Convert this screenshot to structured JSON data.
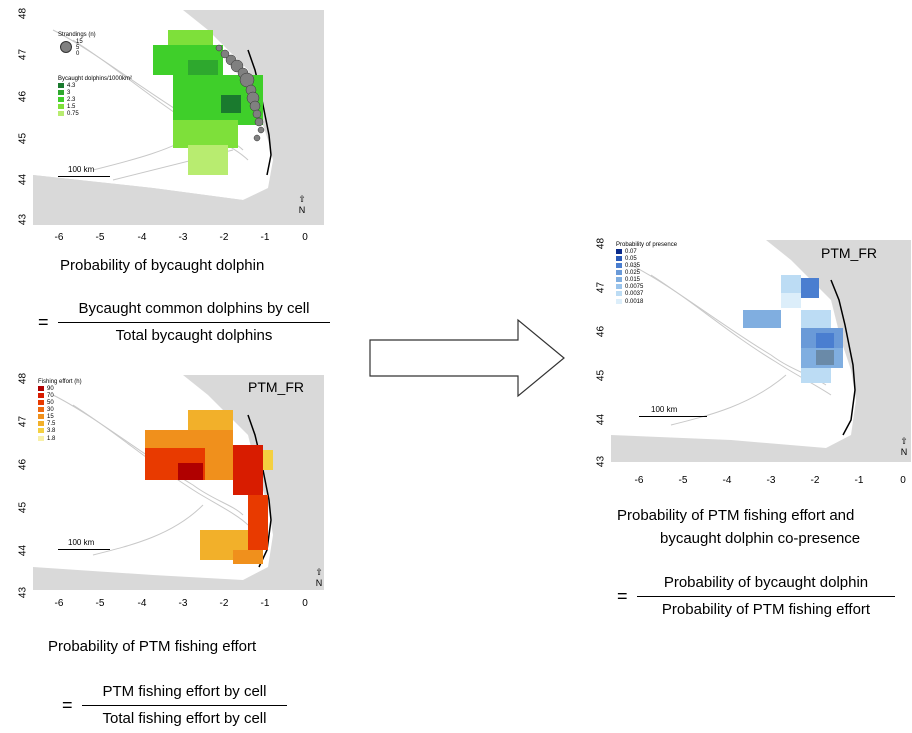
{
  "panels": {
    "top_left": {
      "y_ticks": [
        "48",
        "47",
        "46",
        "45",
        "44",
        "43"
      ],
      "x_ticks": [
        "-6",
        "-5",
        "-4",
        "-3",
        "-2",
        "-1",
        "0"
      ],
      "legend_strandings_title": "Strandings (n)",
      "legend_strandings": [
        "15",
        "5",
        "0"
      ],
      "legend_title": "Bycaught dolphins/1000km²",
      "legend": [
        {
          "label": "4.3",
          "color": "#1a7a2e"
        },
        {
          "label": "3",
          "color": "#2ea82e"
        },
        {
          "label": "2.3",
          "color": "#3fcf2a"
        },
        {
          "label": "1.5",
          "color": "#7ee03a"
        },
        {
          "label": "0.75",
          "color": "#b8ec70"
        }
      ],
      "scale_label": "100 km",
      "north": "N",
      "caption": "Probability of bycaught dolphin",
      "numerator": "Bycaught common dolphins by cell",
      "denominator": "Total bycaught dolphins",
      "equals": "="
    },
    "bottom_left": {
      "y_ticks": [
        "48",
        "47",
        "46",
        "45",
        "44",
        "43"
      ],
      "x_ticks": [
        "-6",
        "-5",
        "-4",
        "-3",
        "-2",
        "-1",
        "0"
      ],
      "legend_title": "Fishing effort (h)",
      "legend": [
        {
          "label": "90",
          "color": "#b00000"
        },
        {
          "label": "70",
          "color": "#d81c00"
        },
        {
          "label": "50",
          "color": "#e83a00"
        },
        {
          "label": "30",
          "color": "#ee6a10"
        },
        {
          "label": "15",
          "color": "#f0901c"
        },
        {
          "label": "7.5",
          "color": "#f2b02a"
        },
        {
          "label": "3.8",
          "color": "#f4d040"
        },
        {
          "label": "1.8",
          "color": "#f8f0a8"
        }
      ],
      "label": "PTM_FR",
      "scale_label": "100 km",
      "north": "N",
      "caption": "Probability of PTM fishing effort",
      "numerator": "PTM fishing effort by cell",
      "denominator": "Total fishing effort by cell",
      "equals": "="
    },
    "right": {
      "y_ticks": [
        "48",
        "47",
        "46",
        "45",
        "44",
        "43"
      ],
      "x_ticks": [
        "-6",
        "-5",
        "-4",
        "-3",
        "-2",
        "-1",
        "0"
      ],
      "legend_title": "Probability of presence",
      "legend": [
        {
          "label": "0.07",
          "color": "#0a2a8a"
        },
        {
          "label": "0.05",
          "color": "#2a5ab8"
        },
        {
          "label": "0.035",
          "color": "#4a7ed0"
        },
        {
          "label": "0.025",
          "color": "#6a9ad8"
        },
        {
          "label": "0.015",
          "color": "#80aee0"
        },
        {
          "label": "0.0075",
          "color": "#9ac4ec"
        },
        {
          "label": "0.0037",
          "color": "#bcdcf4"
        },
        {
          "label": "0.0018",
          "color": "#dceefa"
        }
      ],
      "label": "PTM_FR",
      "scale_label": "100 km",
      "north": "N",
      "caption_line1": "Probability of PTM fishing effort and",
      "caption_line2": "bycaught dolphin co-presence",
      "numerator": "Probability of bycaught dolphin",
      "denominator": "Probability of PTM fishing effort",
      "equals": "="
    }
  }
}
